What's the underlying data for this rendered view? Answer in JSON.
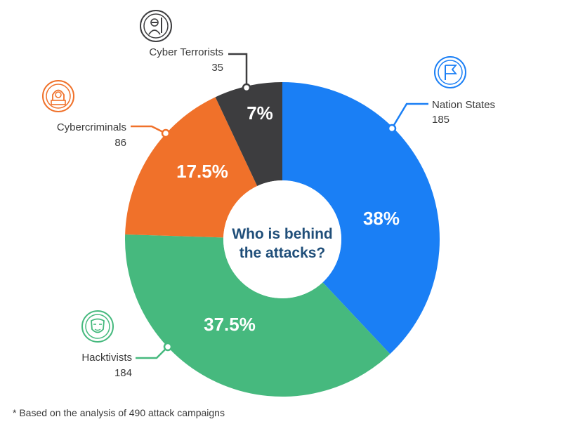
{
  "chart_data": {
    "type": "pie",
    "center_title": [
      "Who is behind",
      "the attacks?"
    ],
    "slices": [
      {
        "label": "Nation States",
        "count": "185",
        "percent": 38,
        "percent_label": "38%",
        "color": "#1a7ff5",
        "icon": "flag-icon"
      },
      {
        "label": "Hacktivists",
        "count": "184",
        "percent": 37.5,
        "percent_label": "37.5%",
        "color": "#46b97e",
        "icon": "mask-icon"
      },
      {
        "label": "Cybercriminals",
        "count": "86",
        "percent": 17.5,
        "percent_label": "17.5%",
        "color": "#f0712a",
        "icon": "hooded-hacker-icon"
      },
      {
        "label": "Cyber Terrorists",
        "count": "35",
        "percent": 7,
        "percent_label": "7%",
        "color": "#3d3d3f",
        "icon": "terrorist-icon"
      }
    ]
  },
  "footnote": "* Based on the analysis of 490 attack campaigns"
}
